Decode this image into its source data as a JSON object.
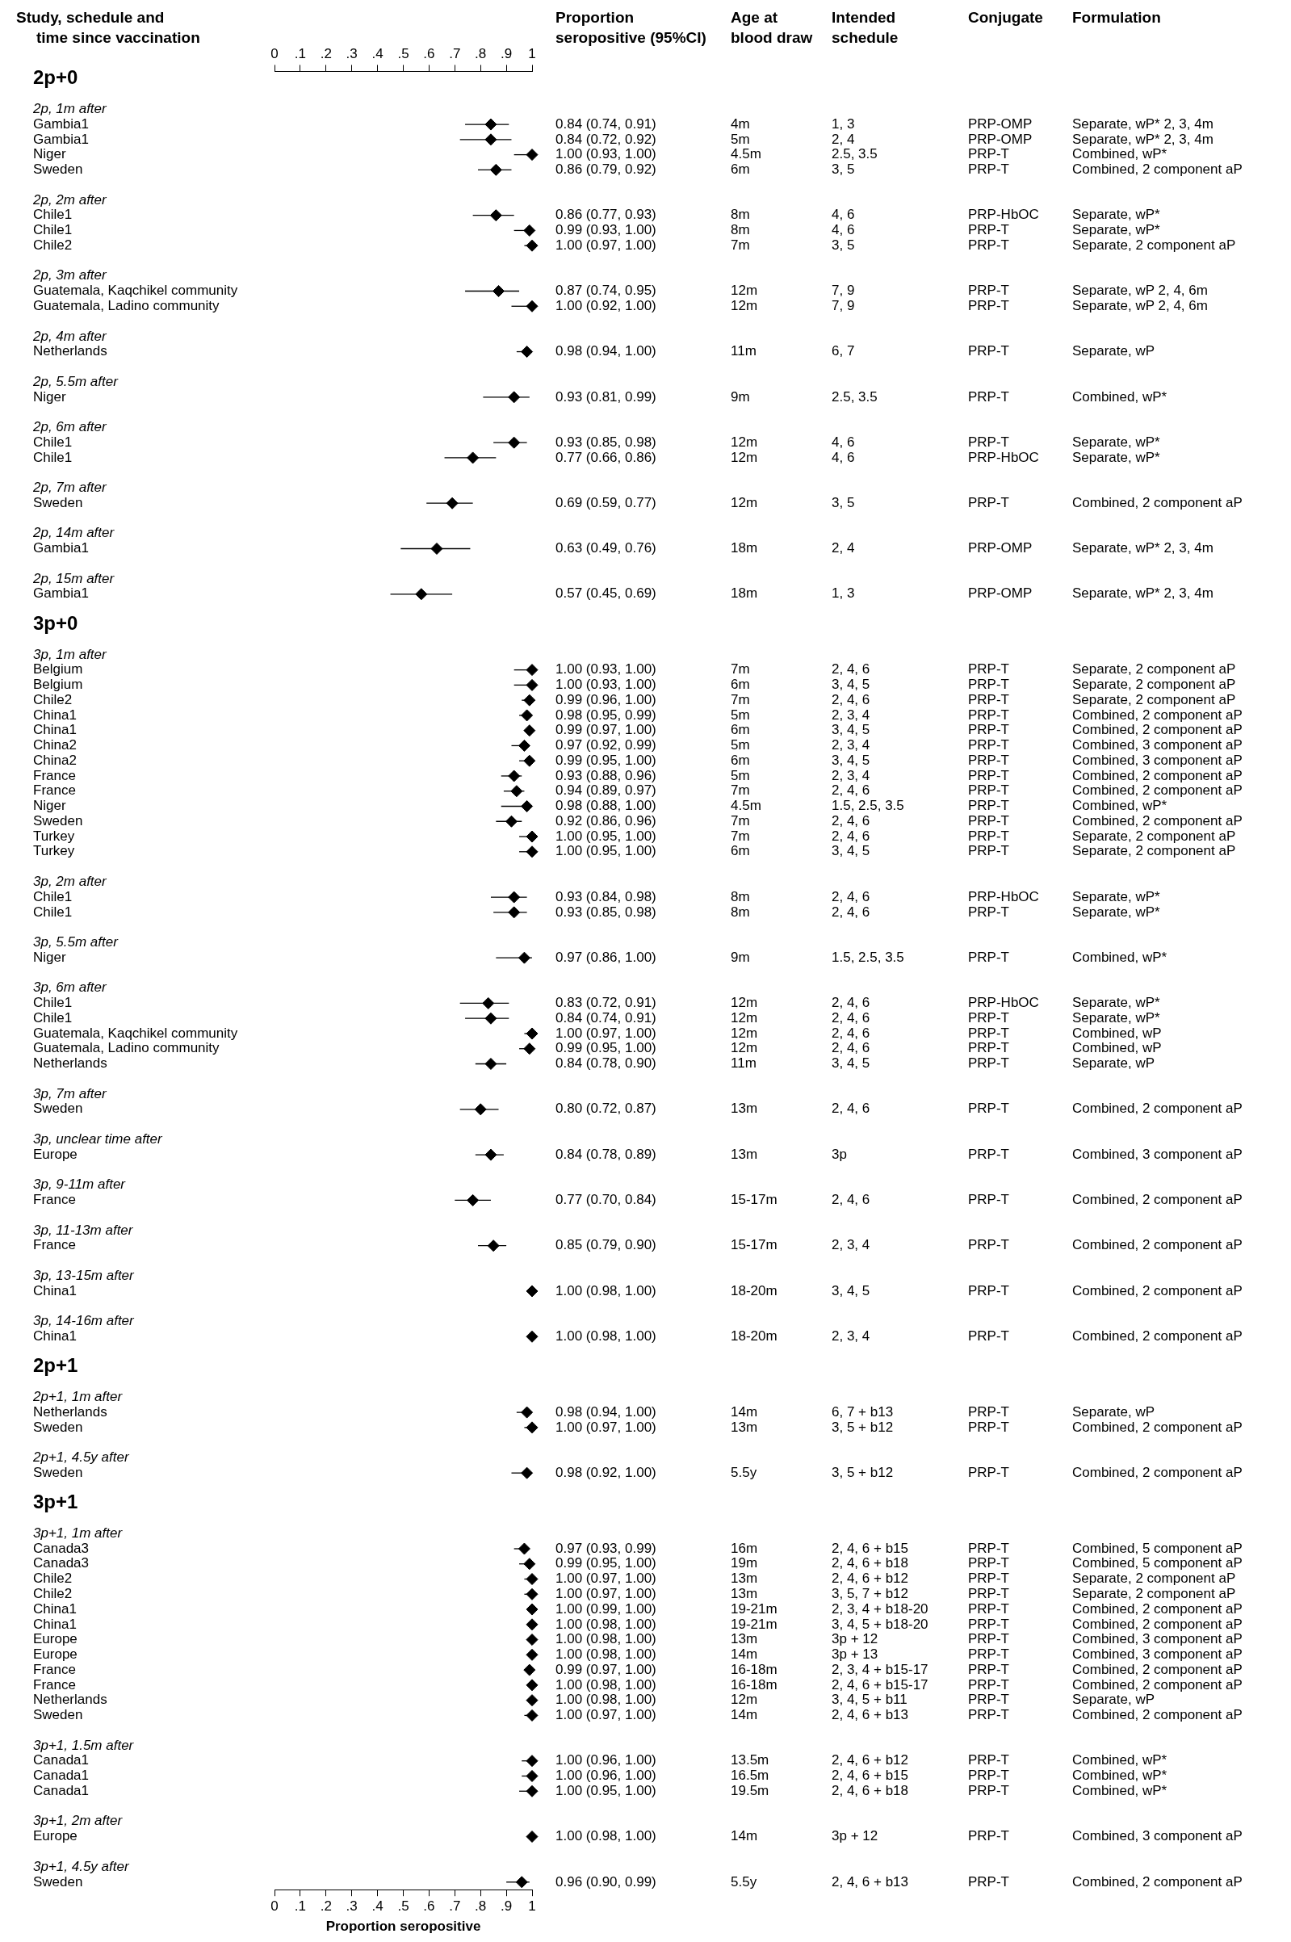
{
  "chart_data": {
    "type": "scatter",
    "orientation": "horizontal",
    "marker": "diamond",
    "color": "#000000",
    "ylabel": "Study, schedule and time since vaccination",
    "xlabel": "Proportion seropositive",
    "xlim": [
      0,
      1
    ],
    "xticks": [
      0,
      {
        "value": 0.1,
        "label": ".1"
      },
      {
        "value": 0.2,
        "label": ".2"
      },
      {
        "value": 0.3,
        "label": ".3"
      },
      {
        "value": 0.4,
        "label": ".4"
      },
      {
        "value": 0.5,
        "label": ".5"
      },
      {
        "value": 0.6,
        "label": ".6"
      },
      {
        "value": 0.7,
        "label": ".7"
      },
      {
        "value": 0.8,
        "label": ".8"
      },
      {
        "value": 0.9,
        "label": ".9"
      },
      1
    ],
    "x2lim": [
      0,
      1
    ],
    "x2ticks": [
      0,
      {
        "value": 0.1,
        "label": ".1"
      },
      {
        "value": 0.2,
        "label": ".2"
      },
      {
        "value": 0.3,
        "label": ".3"
      },
      {
        "value": 0.4,
        "label": ".4"
      },
      {
        "value": 0.5,
        "label": ".5"
      },
      {
        "value": 0.6,
        "label": ".6"
      },
      {
        "value": 0.7,
        "label": ".7"
      },
      {
        "value": 0.8,
        "label": ".8"
      },
      {
        "value": 0.9,
        "label": ".9"
      },
      1
    ],
    "categories": [
      "2p+0",
      null,
      "2p, 1m after",
      "Gambia1",
      "Gambia1",
      "Niger",
      "Sweden",
      null,
      "2p, 2m after",
      "Chile1",
      "Chile1",
      "Chile2",
      null,
      "2p, 3m after",
      "Guatemala, Kaqchikel community",
      "Guatemala, Ladino community",
      null,
      "2p, 4m after",
      "Netherlands",
      null,
      "2p, 5.5m after",
      "Niger",
      null,
      "2p, 6m after",
      "Chile1",
      "Chile1",
      null,
      "2p, 7m after",
      "Sweden",
      null,
      "2p, 14m after",
      "Gambia1",
      null,
      "2p, 15m after",
      "Gambia1",
      null,
      "3p+0",
      null,
      "3p, 1m after",
      "Belgium",
      "Belgium",
      "Chile2",
      "China1",
      "China1",
      "China2",
      "China2",
      "France",
      "France",
      "Niger",
      "Sweden",
      "Turkey",
      "Turkey",
      null,
      "3p, 2m after",
      "Chile1",
      "Chile1",
      null,
      "3p, 5.5m after",
      "Niger",
      null,
      "3p, 6m after",
      "Chile1",
      "Chile1",
      "Guatemala, Kaqchikel community",
      "Guatemala, Ladino community",
      "Netherlands",
      null,
      "3p, 7m after",
      "Sweden",
      null,
      "3p, unclear time after",
      "Europe",
      null,
      "3p, 9-11m after",
      "France",
      null,
      "3p, 11-13m after",
      "France",
      null,
      "3p, 13-15m after",
      "China1",
      null,
      "3p, 14-16m after",
      "China1",
      null,
      "2p+1",
      null,
      "2p+1, 1m after",
      "Netherlands",
      "Sweden",
      null,
      "2p+1, 4.5y after",
      "Sweden",
      null,
      "3p+1",
      null,
      "3p+1, 1m after",
      "Canada3",
      "Canada3",
      "Chile2",
      "Chile2",
      "China1",
      "China1",
      "Europe",
      "Europe",
      "France",
      "France",
      "Netherlands",
      "Sweden",
      null,
      "3p+1, 1.5m after",
      "Canada1",
      "Canada1",
      "Canada1",
      null,
      "3p+1, 2m after",
      "Europe",
      null,
      "3p+1, 4.5y after",
      "Sweden"
    ],
    "values": [
      null,
      null,
      null,
      0.84,
      0.84,
      1.0,
      0.86,
      null,
      null,
      0.86,
      0.99,
      1.0,
      null,
      null,
      0.87,
      1.0,
      null,
      null,
      0.98,
      null,
      null,
      0.93,
      null,
      null,
      0.93,
      0.77,
      null,
      null,
      0.69,
      null,
      null,
      0.63,
      null,
      null,
      0.57,
      null,
      null,
      null,
      null,
      1.0,
      1.0,
      0.99,
      0.98,
      0.99,
      0.97,
      0.99,
      0.93,
      0.94,
      0.98,
      0.92,
      1.0,
      1.0,
      null,
      null,
      0.93,
      0.93,
      null,
      null,
      0.97,
      null,
      null,
      0.83,
      0.84,
      1.0,
      0.99,
      0.84,
      null,
      null,
      0.8,
      null,
      null,
      0.84,
      null,
      null,
      0.77,
      null,
      null,
      0.85,
      null,
      null,
      1.0,
      null,
      null,
      1.0,
      null,
      null,
      null,
      null,
      0.98,
      1.0,
      null,
      null,
      0.98,
      null,
      null,
      null,
      null,
      0.97,
      0.99,
      1.0,
      1.0,
      1.0,
      1.0,
      1.0,
      1.0,
      0.99,
      1.0,
      1.0,
      1.0,
      null,
      null,
      1.0,
      1.0,
      1.0,
      null,
      null,
      1.0,
      null,
      null,
      0.96
    ],
    "errors": [
      null,
      null,
      null,
      [
        0.74,
        0.91
      ],
      [
        0.72,
        0.92
      ],
      [
        0.93,
        1.0
      ],
      [
        0.79,
        0.92
      ],
      null,
      null,
      [
        0.77,
        0.93
      ],
      [
        0.93,
        1.0
      ],
      [
        0.97,
        1.0
      ],
      null,
      null,
      [
        0.74,
        0.95
      ],
      [
        0.92,
        1.0
      ],
      null,
      null,
      [
        0.94,
        1.0
      ],
      null,
      null,
      [
        0.81,
        0.99
      ],
      null,
      null,
      [
        0.85,
        0.98
      ],
      [
        0.66,
        0.86
      ],
      null,
      null,
      [
        0.59,
        0.77
      ],
      null,
      null,
      [
        0.49,
        0.76
      ],
      null,
      null,
      [
        0.45,
        0.69
      ],
      null,
      null,
      null,
      null,
      [
        0.93,
        1.0
      ],
      [
        0.93,
        1.0
      ],
      [
        0.96,
        1.0
      ],
      [
        0.95,
        0.99
      ],
      [
        0.97,
        1.0
      ],
      [
        0.92,
        0.99
      ],
      [
        0.95,
        1.0
      ],
      [
        0.88,
        0.96
      ],
      [
        0.89,
        0.97
      ],
      [
        0.88,
        1.0
      ],
      [
        0.86,
        0.96
      ],
      [
        0.95,
        1.0
      ],
      [
        0.95,
        1.0
      ],
      null,
      null,
      [
        0.84,
        0.98
      ],
      [
        0.85,
        0.98
      ],
      null,
      null,
      [
        0.86,
        1.0
      ],
      null,
      null,
      [
        0.72,
        0.91
      ],
      [
        0.74,
        0.91
      ],
      [
        0.97,
        1.0
      ],
      [
        0.95,
        1.0
      ],
      [
        0.78,
        0.9
      ],
      null,
      null,
      [
        0.72,
        0.87
      ],
      null,
      null,
      [
        0.78,
        0.89
      ],
      null,
      null,
      [
        0.7,
        0.84
      ],
      null,
      null,
      [
        0.79,
        0.9
      ],
      null,
      null,
      [
        0.98,
        1.0
      ],
      null,
      null,
      [
        0.98,
        1.0
      ],
      null,
      null,
      null,
      null,
      [
        0.94,
        1.0
      ],
      [
        0.97,
        1.0
      ],
      null,
      null,
      [
        0.92,
        1.0
      ],
      null,
      null,
      null,
      null,
      [
        0.93,
        0.99
      ],
      [
        0.95,
        1.0
      ],
      [
        0.97,
        1.0
      ],
      [
        0.97,
        1.0
      ],
      [
        0.99,
        1.0
      ],
      [
        0.98,
        1.0
      ],
      [
        0.98,
        1.0
      ],
      [
        0.98,
        1.0
      ],
      [
        0.97,
        1.0
      ],
      [
        0.98,
        1.0
      ],
      [
        0.98,
        1.0
      ],
      [
        0.97,
        1.0
      ],
      null,
      null,
      [
        0.96,
        1.0
      ],
      [
        0.96,
        1.0
      ],
      [
        0.95,
        1.0
      ],
      null,
      null,
      [
        0.98,
        1.0
      ],
      null,
      null,
      [
        0.9,
        0.99
      ]
    ],
    "value_labels": [
      null,
      null,
      null,
      "0.84 (0.74, 0.91)",
      "0.84 (0.72, 0.92)",
      "1.00 (0.93, 1.00)",
      "0.86 (0.79, 0.92)",
      null,
      null,
      "0.86 (0.77, 0.93)",
      "0.99 (0.93, 1.00)",
      "1.00 (0.97, 1.00)",
      null,
      null,
      "0.87 (0.74, 0.95)",
      "1.00 (0.92, 1.00)",
      null,
      null,
      "0.98 (0.94, 1.00)",
      null,
      null,
      "0.93 (0.81, 0.99)",
      null,
      null,
      "0.93 (0.85, 0.98)",
      "0.77 (0.66, 0.86)",
      null,
      null,
      "0.69 (0.59, 0.77)",
      null,
      null,
      "0.63 (0.49, 0.76)",
      null,
      null,
      "0.57 (0.45, 0.69)",
      null,
      null,
      null,
      null,
      "1.00 (0.93, 1.00)",
      "1.00 (0.93, 1.00)",
      "0.99 (0.96, 1.00)",
      "0.98 (0.95, 0.99)",
      "0.99 (0.97, 1.00)",
      "0.97 (0.92, 0.99)",
      "0.99 (0.95, 1.00)",
      "0.93 (0.88, 0.96)",
      "0.94 (0.89, 0.97)",
      "0.98 (0.88, 1.00)",
      "0.92 (0.86, 0.96)",
      "1.00 (0.95, 1.00)",
      "1.00 (0.95, 1.00)",
      null,
      null,
      "0.93 (0.84, 0.98)",
      "0.93 (0.85, 0.98)",
      null,
      null,
      "0.97 (0.86, 1.00)",
      null,
      null,
      "0.83 (0.72, 0.91)",
      "0.84 (0.74, 0.91)",
      "1.00 (0.97, 1.00)",
      "0.99 (0.95, 1.00)",
      "0.84 (0.78, 0.90)",
      null,
      null,
      "0.80 (0.72, 0.87)",
      null,
      null,
      "0.84 (0.78, 0.89)",
      null,
      null,
      "0.77 (0.70, 0.84)",
      null,
      null,
      "0.85 (0.79, 0.90)",
      null,
      null,
      "1.00 (0.98, 1.00)",
      null,
      null,
      "1.00 (0.98, 1.00)",
      null,
      null,
      null,
      null,
      "0.98 (0.94, 1.00)",
      "1.00 (0.97, 1.00)",
      null,
      null,
      "0.98 (0.92, 1.00)",
      null,
      null,
      null,
      null,
      "0.97 (0.93, 0.99)",
      "0.99 (0.95, 1.00)",
      "1.00 (0.97, 1.00)",
      "1.00 (0.97, 1.00)",
      "1.00 (0.99, 1.00)",
      "1.00 (0.98, 1.00)",
      "1.00 (0.98, 1.00)",
      "1.00 (0.98, 1.00)",
      "0.99 (0.97, 1.00)",
      "1.00 (0.98, 1.00)",
      "1.00 (0.98, 1.00)",
      "1.00 (0.97, 1.00)",
      null,
      null,
      "1.00 (0.96, 1.00)",
      "1.00 (0.96, 1.00)",
      "1.00 (0.95, 1.00)",
      null,
      null,
      "1.00 (0.98, 1.00)",
      null,
      null,
      "0.96 (0.90, 0.99)"
    ],
    "annotations": [
      "Proportion seropositive (95%CI)",
      "Age at blood draw",
      "Intended schedule",
      "Conjugate",
      "Formulation",
      "4m",
      "1, 3",
      "PRP-OMP",
      "Separate, wP* 2, 3, 4m",
      "5m",
      "2, 4",
      "PRP-OMP",
      "Separate, wP* 2, 3, 4m",
      "4.5m",
      "2.5, 3.5",
      "PRP-T",
      "Combined, wP*",
      "6m",
      "3, 5",
      "PRP-T",
      "Combined, 2 component aP",
      "8m",
      "4, 6",
      "PRP-HbOC",
      "Separate, wP*",
      "8m",
      "4, 6",
      "PRP-T",
      "Separate, wP*",
      "7m",
      "3, 5",
      "PRP-T",
      "Separate, 2 component aP",
      "12m",
      "7, 9",
      "PRP-T",
      "Separate, wP 2, 4, 6m",
      "12m",
      "7, 9",
      "PRP-T",
      "Separate, wP 2, 4, 6m",
      "11m",
      "6, 7",
      "PRP-T",
      "Separate, wP",
      "9m",
      "2.5, 3.5",
      "PRP-T",
      "Combined, wP*",
      "12m",
      "4, 6",
      "PRP-T",
      "Separate, wP*",
      "12m",
      "4, 6",
      "PRP-HbOC",
      "Separate, wP*",
      "12m",
      "3, 5",
      "PRP-T",
      "Combined, 2 component aP",
      "18m",
      "2, 4",
      "PRP-OMP",
      "Separate, wP* 2, 3, 4m",
      "18m",
      "1, 3",
      "PRP-OMP",
      "Separate, wP* 2, 3, 4m",
      "7m",
      "2, 4, 6",
      "PRP-T",
      "Separate, 2 component aP",
      "6m",
      "3, 4, 5",
      "PRP-T",
      "Separate, 2 component aP",
      "7m",
      "2, 4, 6",
      "PRP-T",
      "Separate, 2 component aP",
      "5m",
      "2, 3, 4",
      "PRP-T",
      "Combined, 2 component aP",
      "6m",
      "3, 4, 5",
      "PRP-T",
      "Combined, 2 component aP",
      "5m",
      "2, 3, 4",
      "PRP-T",
      "Combined, 3 component aP",
      "6m",
      "3, 4, 5",
      "PRP-T",
      "Combined, 3 component aP",
      "5m",
      "2, 3, 4",
      "PRP-T",
      "Combined, 2 component aP",
      "7m",
      "2, 4, 6",
      "PRP-T",
      "Combined, 2 component aP",
      "4.5m",
      "1.5, 2.5, 3.5",
      "PRP-T",
      "Combined, wP*",
      "7m",
      "2, 4, 6",
      "PRP-T",
      "Combined, 2 component aP",
      "7m",
      "2, 4, 6",
      "PRP-T",
      "Separate, 2 component aP",
      "6m",
      "3, 4, 5",
      "PRP-T",
      "Separate, 2 component aP",
      "8m",
      "2, 4, 6",
      "PRP-HbOC",
      "Separate, wP*",
      "8m",
      "2, 4, 6",
      "PRP-T",
      "Separate, wP*",
      "9m",
      "1.5, 2.5, 3.5",
      "PRP-T",
      "Combined, wP*",
      "12m",
      "2, 4, 6",
      "PRP-HbOC",
      "Separate, wP*",
      "12m",
      "2, 4, 6",
      "PRP-T",
      "Separate, wP*",
      "12m",
      "2, 4, 6",
      "PRP-T",
      "Combined, wP",
      "12m",
      "2, 4, 6",
      "PRP-T",
      "Combined, wP",
      "11m",
      "3, 4, 5",
      "PRP-T",
      "Separate, wP",
      "13m",
      "2, 4, 6",
      "PRP-T",
      "Combined, 2 component aP",
      "13m",
      "3p",
      "PRP-T",
      "Combined, 3 component aP",
      "15-17m",
      "2, 4, 6",
      "PRP-T",
      "Combined, 2 component aP",
      "15-17m",
      "2, 3, 4",
      "PRP-T",
      "Combined, 2 component aP",
      "18-20m",
      "3, 4, 5",
      "PRP-T",
      "Combined, 2 component aP",
      "18-20m",
      "2, 3, 4",
      "PRP-T",
      "Combined, 2 component aP",
      "14m",
      "6, 7 + b13",
      "PRP-T",
      "Separate, wP",
      "13m",
      "3, 5 + b12",
      "PRP-T",
      "Combined, 2 component aP",
      "5.5y",
      "3, 5 + b12",
      "PRP-T",
      "Combined, 2 component aP",
      "16m",
      "2, 4, 6 + b15",
      "PRP-T",
      "Combined, 5 component aP",
      "19m",
      "2, 4, 6 + b18",
      "PRP-T",
      "Combined, 5 component aP",
      "13m",
      "2, 4, 6 + b12",
      "PRP-T",
      "Separate, 2 component aP",
      "13m",
      "3, 5, 7 + b12",
      "PRP-T",
      "Separate, 2 component aP",
      "19-21m",
      "2, 3, 4 + b18-20",
      "PRP-T",
      "Combined, 2 component aP",
      "19-21m",
      "3, 4, 5 + b18-20",
      "PRP-T",
      "Combined, 2 component aP",
      "13m",
      "3p + 12",
      "PRP-T",
      "Combined, 3 component aP",
      "14m",
      "3p + 13",
      "PRP-T",
      "Combined, 3 component aP",
      "16-18m",
      "2, 3, 4 + b15-17",
      "PRP-T",
      "Combined, 2 component aP",
      "16-18m",
      "2, 4, 6 + b15-17",
      "PRP-T",
      "Combined, 2 component aP",
      "12m",
      "3, 4, 5 + b11",
      "PRP-T",
      "Separate, wP",
      "14m",
      "2, 4, 6 + b13",
      "PRP-T",
      "Combined, 2 component aP",
      "13.5m",
      "2, 4, 6 + b12",
      "PRP-T",
      "Combined, wP*",
      "16.5m",
      "2, 4, 6 + b15",
      "PRP-T",
      "Combined, wP*",
      "19.5m",
      "2, 4, 6 + b18",
      "PRP-T",
      "Combined, wP*",
      "14m",
      "3p + 12",
      "PRP-T",
      "Combined, 3 component aP",
      "5.5y",
      "2, 4, 6 + b13",
      "PRP-T",
      "Combined, 2 component aP"
    ]
  }
}
